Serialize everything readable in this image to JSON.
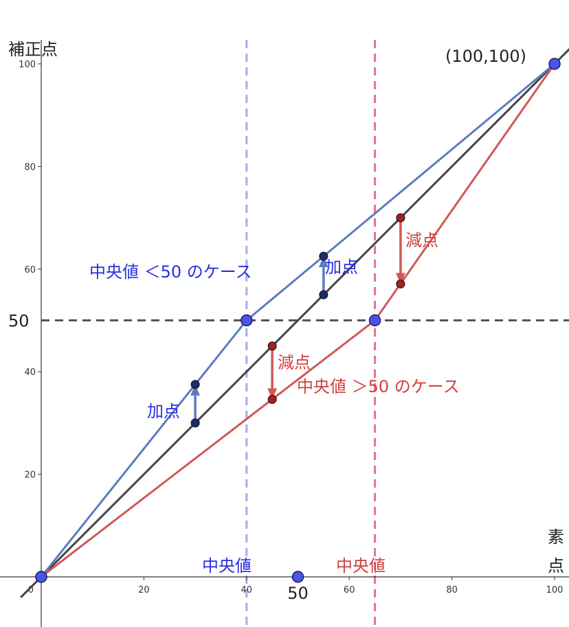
{
  "chart_data": {
    "type": "line",
    "axes": {
      "x_title_line1": "素",
      "x_title_line2": "点",
      "y_title": "補正点",
      "xlim": [
        -4,
        103
      ],
      "ylim": [
        -5,
        110
      ],
      "x_ticks": [
        {
          "value": 0,
          "label": "0"
        },
        {
          "value": 20,
          "label": "20"
        },
        {
          "value": 40,
          "label": "40"
        },
        {
          "value": 60,
          "label": "60"
        },
        {
          "value": 80,
          "label": "80"
        },
        {
          "value": 100,
          "label": "100"
        }
      ],
      "y_ticks": [
        {
          "value": 20,
          "label": "20"
        },
        {
          "value": 40,
          "label": "40"
        },
        {
          "value": 60,
          "label": "60"
        },
        {
          "value": 80,
          "label": "80"
        },
        {
          "value": 100,
          "label": "100"
        }
      ],
      "grid": false
    },
    "series": [
      {
        "key": "identity",
        "color": "#444444",
        "points": [
          [
            -4,
            -4
          ],
          [
            103,
            103
          ]
        ]
      },
      {
        "key": "blue",
        "name": "中央値 ＜50 のケース",
        "color": "#5b7bbf",
        "points": [
          [
            0,
            0
          ],
          [
            40,
            50
          ],
          [
            100,
            100
          ]
        ]
      },
      {
        "key": "red",
        "name": "中央値 ＞50 のケース",
        "color": "#d05858",
        "points": [
          [
            0,
            0
          ],
          [
            65,
            50
          ],
          [
            100,
            100
          ]
        ]
      }
    ],
    "reference_lines": [
      {
        "key": "median-blue",
        "orientation": "vertical",
        "value": 40,
        "color": "#a8a8f4",
        "label": "中央値"
      },
      {
        "key": "median-red",
        "orientation": "vertical",
        "value": 65,
        "color": "#ea7090",
        "label": "中央値"
      },
      {
        "key": "fifty",
        "orientation": "horizontal",
        "value": 50,
        "color": "#555555",
        "label": "50"
      }
    ],
    "x_marker": {
      "value": 50,
      "label": "50"
    },
    "key_points": [
      {
        "key": "origin",
        "x": 0,
        "y": 0,
        "color": "#4a55e8"
      },
      {
        "key": "blue-median",
        "x": 40,
        "y": 50,
        "color": "#4a55e8"
      },
      {
        "key": "red-median",
        "x": 65,
        "y": 50,
        "color": "#4a55e8"
      },
      {
        "key": "top",
        "x": 100,
        "y": 100,
        "color": "#4a55e8",
        "label": "(100,100)"
      }
    ],
    "adjustments": [
      {
        "key": "blue-add-low",
        "x": 30,
        "from": 30,
        "to": 37.5,
        "color": "#5b7bbf",
        "dot": "#1a2d6b",
        "label": "加点"
      },
      {
        "key": "blue-add-high",
        "x": 55,
        "from": 55,
        "to": 62.5,
        "color": "#5b7bbf",
        "dot": "#1a2d6b",
        "label": "加点"
      },
      {
        "key": "red-sub-low",
        "x": 45,
        "from": 45,
        "to": 34.6,
        "color": "#d05858",
        "dot": "#a32020",
        "label": "減点"
      },
      {
        "key": "red-sub-high",
        "x": 70,
        "from": 70,
        "to": 57.1,
        "color": "#d05858",
        "dot": "#a32020",
        "label": "減点"
      }
    ]
  }
}
